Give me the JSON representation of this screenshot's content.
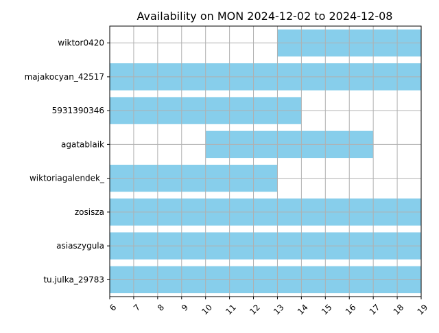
{
  "chart_data": {
    "type": "bar",
    "orientation": "horizontal",
    "title": "Availability on MON 2024-12-02 to 2024-12-08",
    "xlabel": "",
    "ylabel": "",
    "xlim": [
      6,
      19
    ],
    "xticks": [
      6,
      7,
      8,
      9,
      10,
      11,
      12,
      13,
      14,
      15,
      16,
      17,
      18,
      19
    ],
    "grid": true,
    "legend": "none",
    "bar_color": "#87ceeb",
    "grid_color": "#b0b0b0",
    "categories": [
      "wiktor0420",
      "majakocyan_42517",
      "5931390346",
      "agatablaik",
      "wiktoriagalendek_",
      "zosisza",
      "asiaszygula",
      "tu.julka_29783"
    ],
    "intervals": [
      {
        "name": "wiktor0420",
        "start": 13,
        "end": 19
      },
      {
        "name": "majakocyan_42517",
        "start": 6,
        "end": 19
      },
      {
        "name": "5931390346",
        "start": 6,
        "end": 14
      },
      {
        "name": "agatablaik",
        "start": 10,
        "end": 17
      },
      {
        "name": "wiktoriagalendek_",
        "start": 6,
        "end": 13
      },
      {
        "name": "zosisza",
        "start": 6,
        "end": 19
      },
      {
        "name": "asiaszygula",
        "start": 6,
        "end": 19
      },
      {
        "name": "tu.julka_29783",
        "start": 6,
        "end": 19
      }
    ]
  }
}
